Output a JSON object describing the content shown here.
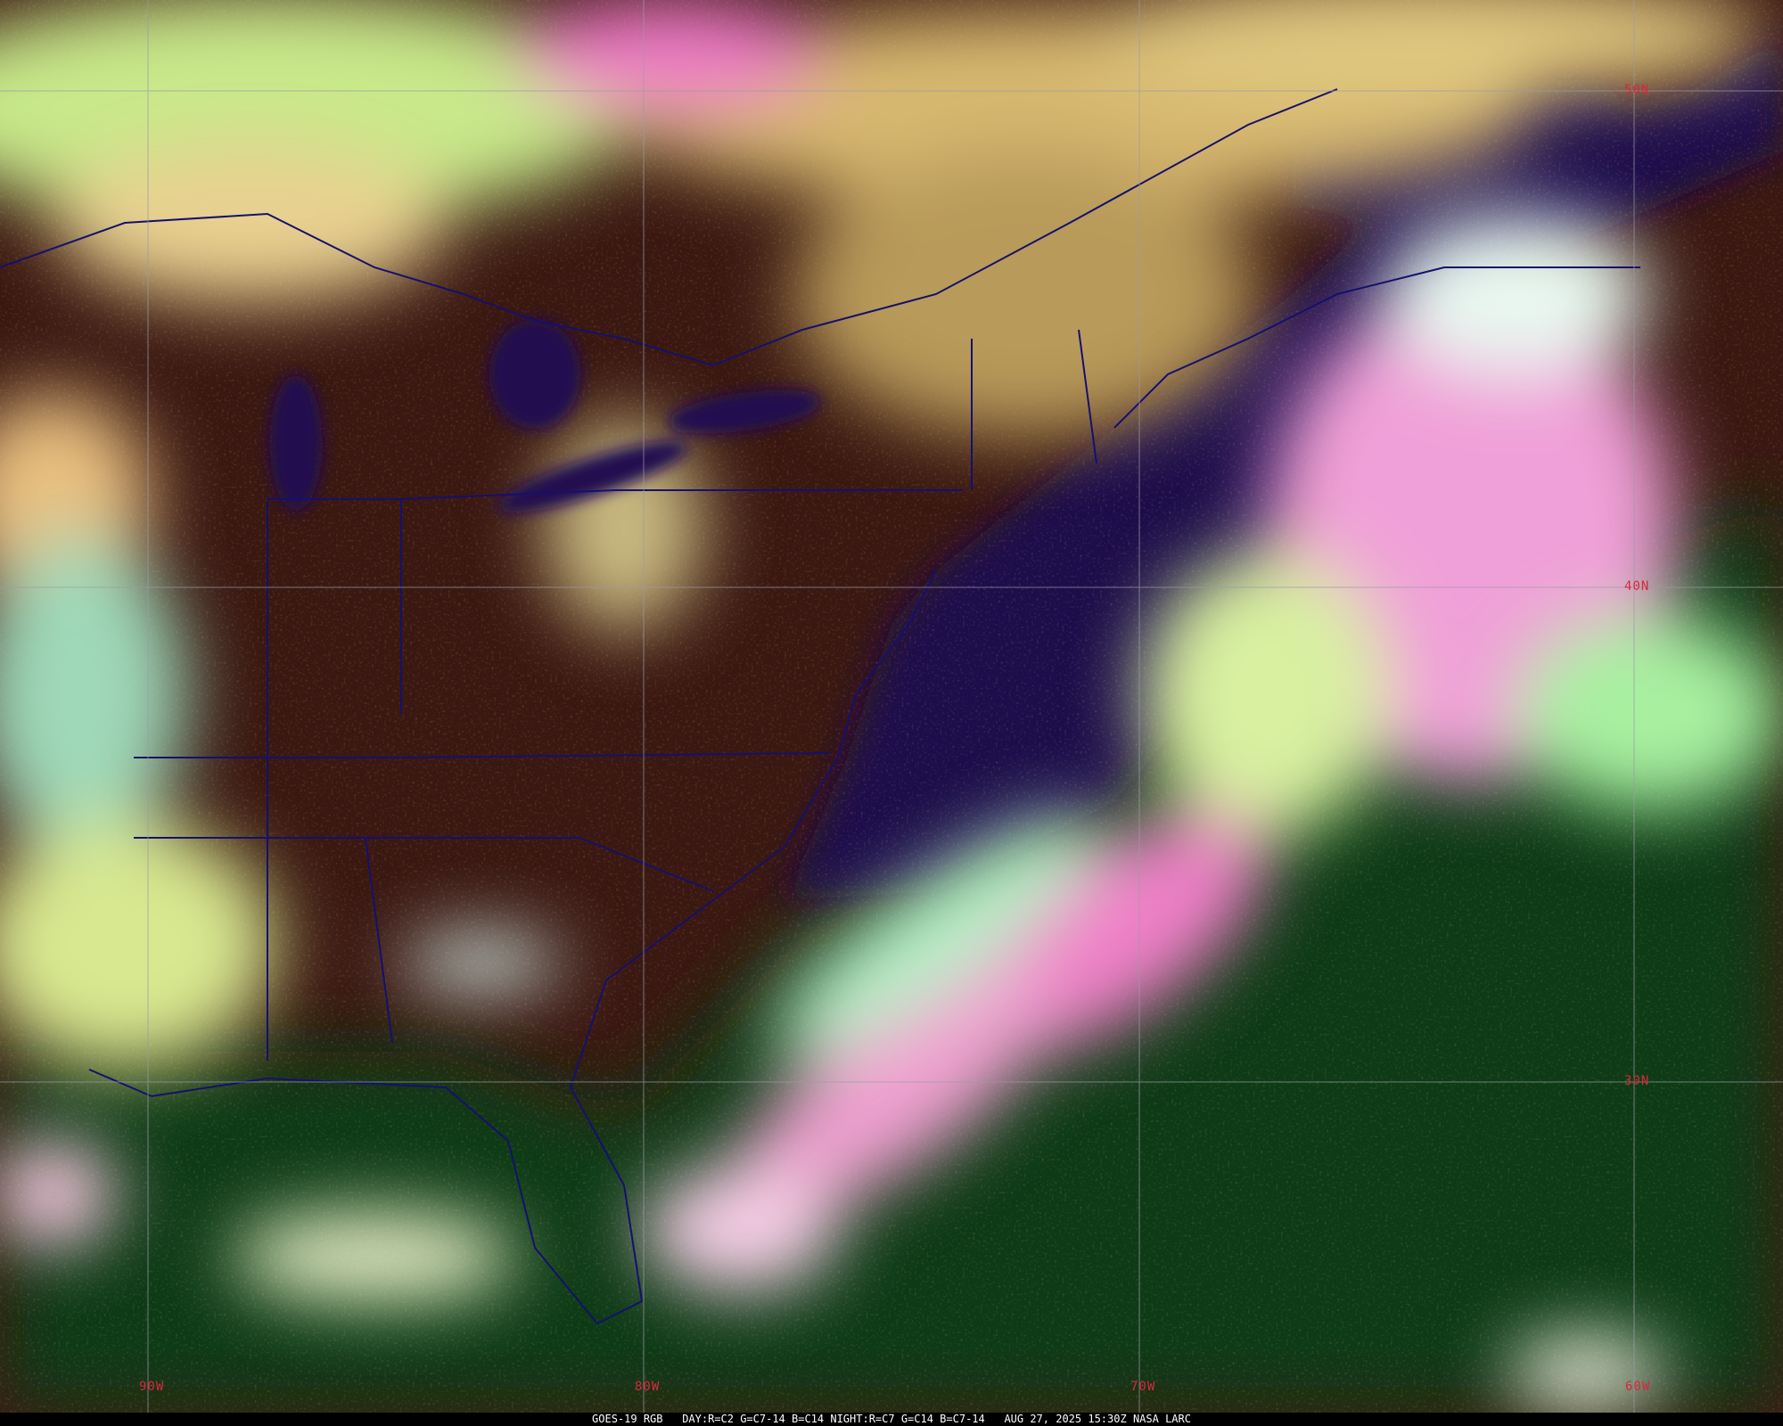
{
  "image": {
    "product": "GOES-19 RGB",
    "bands": "DAY:R=C2 G=C7-14 B=C14 NIGHT:R=C7 G=C14 B=C7-14",
    "datetime": "AUG 27, 2025 15:30Z",
    "credit": "NASA LARC"
  },
  "grid": {
    "latitude_labels": [
      "50N",
      "40N",
      "30N"
    ],
    "longitude_labels": [
      "90W",
      "80W",
      "70W",
      "60W"
    ]
  },
  "colors": {
    "grid_line": "#9a9aa8",
    "grid_label": "#d8283c",
    "boundary": "#14106e",
    "ocean": "#1c0f4c",
    "land": "#3a1812",
    "low_cloud": "#e8f0a0",
    "high_cloud_pink": "#f07ac8",
    "tropical_ocean": "#0f3a16"
  }
}
